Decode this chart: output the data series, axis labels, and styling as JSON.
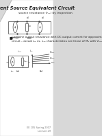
{
  "title": "Current Source Equivalent Circuit",
  "subtitle": "source resistance (rₒₒ) by inspection",
  "bullet_text": "Combine output resistance with DC output current for approximate equivalent\ncircuit – actual i₂₂ vs. v₂₂ characteristics are those of M₂ with V₂₂₁ = V₂₂₂",
  "footer_text": "EE 105 Spring 2007\nLecture 29",
  "page_bg": "#d8d8d8",
  "content_bg": "#ffffff",
  "text_color": "#222222",
  "circuit_color": "#444444",
  "title_fontsize": 4.8,
  "subtitle_fontsize": 3.2,
  "body_fontsize": 3.0,
  "footer_fontsize": 2.5
}
